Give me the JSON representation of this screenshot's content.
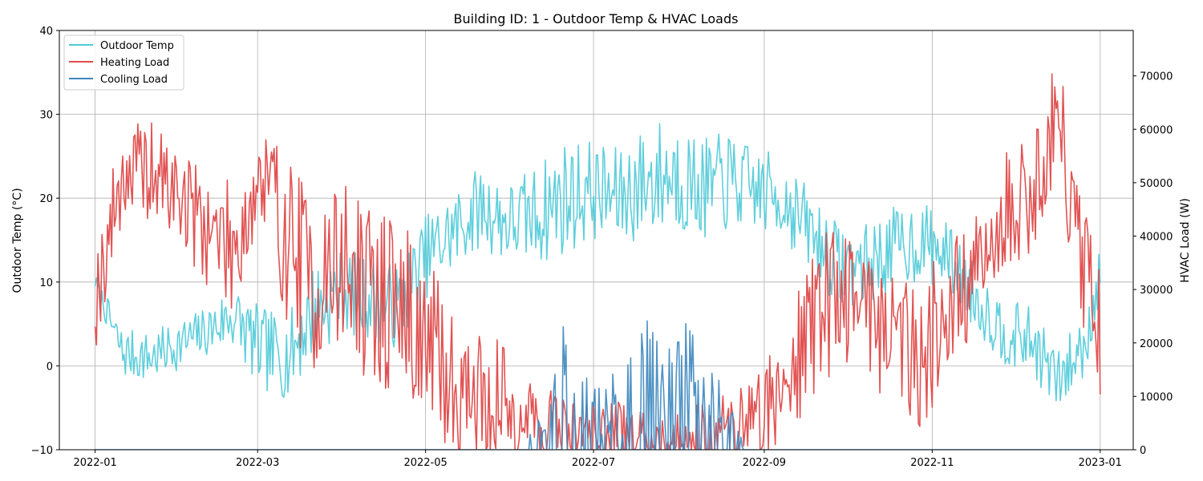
{
  "chart_data": {
    "type": "line",
    "title": "Building ID: 1 - Outdoor Temp & HVAC Loads",
    "xlabel": "",
    "ylabel_left": "Outdoor Temp (°C)",
    "ylabel_right": "HVAC Load (W)",
    "xlim": [
      "2021-12-19",
      "2023-01-13"
    ],
    "ylim_left": [
      -10,
      40
    ],
    "ylim_right": [
      0,
      78500
    ],
    "x_ticks": [
      "2022-01",
      "2022-03",
      "2022-05",
      "2022-07",
      "2022-09",
      "2022-11",
      "2023-01"
    ],
    "y_ticks_left": [
      -10,
      0,
      10,
      20,
      30,
      40
    ],
    "y_ticks_right": [
      0,
      10000,
      20000,
      30000,
      40000,
      50000,
      60000,
      70000
    ],
    "grid": true,
    "legend_position": "top-left",
    "series": [
      {
        "name": "Outdoor Temp",
        "axis": "left",
        "color": "#4ecad8",
        "x": [
          "2022-01-01",
          "2022-01-11",
          "2022-01-21",
          "2022-01-31",
          "2022-02-10",
          "2022-02-20",
          "2022-03-02",
          "2022-03-12",
          "2022-03-22",
          "2022-04-01",
          "2022-04-11",
          "2022-04-21",
          "2022-05-01",
          "2022-05-11",
          "2022-05-21",
          "2022-05-31",
          "2022-06-10",
          "2022-06-20",
          "2022-06-30",
          "2022-07-10",
          "2022-07-20",
          "2022-07-30",
          "2022-08-09",
          "2022-08-19",
          "2022-08-29",
          "2022-09-08",
          "2022-09-18",
          "2022-09-28",
          "2022-10-08",
          "2022-10-18",
          "2022-10-28",
          "2022-11-07",
          "2022-11-17",
          "2022-11-27",
          "2022-12-07",
          "2022-12-17",
          "2022-12-27",
          "2023-01-01"
        ],
        "values": [
          10,
          1.5,
          1,
          2.5,
          4,
          6,
          2,
          1,
          7,
          9,
          8,
          7,
          13,
          16,
          19,
          17,
          18,
          20,
          21,
          20,
          22,
          23,
          21,
          22,
          21,
          20,
          16,
          12,
          12,
          14,
          15,
          13,
          8,
          4,
          3,
          -2,
          3,
          12
        ],
        "noise": [
          1,
          3,
          3,
          3,
          3,
          4,
          5,
          5,
          6,
          5,
          5,
          5,
          5,
          5,
          5,
          5,
          6,
          7,
          6,
          6,
          7,
          7,
          6,
          6,
          5,
          5,
          5,
          5,
          5,
          5,
          5,
          4,
          4,
          4,
          4,
          4,
          4,
          4
        ]
      },
      {
        "name": "Heating Load",
        "axis": "right",
        "color": "#e04a4a",
        "x": [
          "2022-01-01",
          "2022-01-11",
          "2022-01-21",
          "2022-01-31",
          "2022-02-10",
          "2022-02-20",
          "2022-03-02",
          "2022-03-12",
          "2022-03-22",
          "2022-04-01",
          "2022-04-11",
          "2022-04-21",
          "2022-05-01",
          "2022-05-11",
          "2022-05-21",
          "2022-05-31",
          "2022-06-10",
          "2022-06-20",
          "2022-06-30",
          "2022-07-10",
          "2022-07-20",
          "2022-07-30",
          "2022-08-09",
          "2022-08-19",
          "2022-08-29",
          "2022-09-08",
          "2022-09-18",
          "2022-09-28",
          "2022-10-08",
          "2022-10-18",
          "2022-10-28",
          "2022-11-07",
          "2022-11-17",
          "2022-11-27",
          "2022-12-07",
          "2022-12-17",
          "2022-12-27",
          "2023-01-01"
        ],
        "values": [
          28000,
          52000,
          52000,
          48000,
          42000,
          38000,
          50000,
          40000,
          30000,
          35000,
          28000,
          28000,
          20000,
          12000,
          10000,
          8000,
          5000,
          4000,
          3000,
          3000,
          2000,
          2000,
          3000,
          4000,
          6000,
          12000,
          24000,
          30000,
          28000,
          22000,
          18000,
          26000,
          32000,
          44000,
          48000,
          62000,
          30000,
          20000
        ],
        "noise": [
          8000,
          8000,
          8000,
          8000,
          9000,
          10000,
          12000,
          14000,
          14000,
          14000,
          14000,
          14000,
          14000,
          12000,
          10000,
          10000,
          8000,
          6000,
          5000,
          5000,
          4000,
          4000,
          5000,
          6000,
          8000,
          10000,
          12000,
          12000,
          12000,
          12000,
          12000,
          12000,
          10000,
          10000,
          10000,
          10000,
          12000,
          12000
        ]
      },
      {
        "name": "Cooling Load",
        "axis": "right",
        "color": "#3d87be",
        "x": [
          "2022-01-01",
          "2022-06-05",
          "2022-06-15",
          "2022-06-20",
          "2022-06-25",
          "2022-07-05",
          "2022-07-15",
          "2022-07-20",
          "2022-07-25",
          "2022-08-01",
          "2022-08-05",
          "2022-08-15",
          "2022-08-25",
          "2023-01-01"
        ],
        "values": [
          0,
          0,
          5000,
          14000,
          8000,
          5000,
          8000,
          18000,
          8000,
          10000,
          14000,
          8000,
          0,
          0
        ],
        "noise": [
          0,
          0,
          4000,
          8000,
          6000,
          5000,
          8000,
          12000,
          8000,
          8000,
          10000,
          6000,
          0,
          0
        ]
      }
    ]
  }
}
